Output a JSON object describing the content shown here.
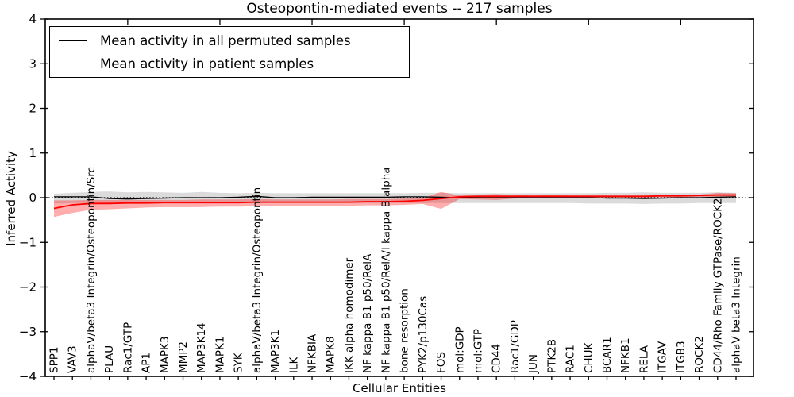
{
  "figure": {
    "title": "Osteopontin-mediated events -- 217 samples",
    "xlabel": "Cellular Entities",
    "ylabel": "Inferred Activity"
  },
  "legend": {
    "entries": [
      {
        "label": "Mean activity in all permuted samples",
        "color": "#000000"
      },
      {
        "label": "Mean activity in patient samples",
        "color": "#ff0000"
      }
    ]
  },
  "chart_data": {
    "type": "line",
    "title": "Osteopontin-mediated events -- 217 samples",
    "xlabel": "Cellular Entities",
    "ylabel": "Inferred Activity",
    "ylim": [
      -4,
      4
    ],
    "yticks": [
      -4,
      -3,
      -2,
      -1,
      0,
      1,
      2,
      3,
      4
    ],
    "ytick_labels": [
      "−4",
      "−3",
      "−2",
      "−1",
      "0",
      "1",
      "2",
      "3",
      "4"
    ],
    "grid": false,
    "zero_reference_line": true,
    "legend_position": "upper left",
    "categories": [
      "SPP1",
      "VAV3",
      "alphaV/beta3 Integrin/Osteopontin/Src",
      "PLAU",
      "Rac1/GTP",
      "AP1",
      "MAPK3",
      "MMP2",
      "MAP3K14",
      "MAPK1",
      "SYK",
      "alphaV/beta3 Integrin/Osteopontin",
      "MAP3K1",
      "ILK",
      "NFKBIA",
      "MAPK8",
      "IKK alpha homodimer",
      "NF kappa B1 p50/RelA",
      "NF kappa B1 p50/RelA/I kappa B alpha",
      "bone resorption",
      "PYK2/p130Cas",
      "FOS",
      "mol:GDP",
      "mol:GTP",
      "CD44",
      "Rac1/GDP",
      "JUN",
      "PTK2B",
      "RAC1",
      "CHUK",
      "BCAR1",
      "NFKB1",
      "RELA",
      "ITGAV",
      "ITGB3",
      "ROCK2",
      "CD44/Rho Family GTPase/ROCK2",
      "alphaV beta3 Integrin"
    ],
    "series": [
      {
        "name": "Mean activity in all permuted samples",
        "color": "#000000",
        "band_color": "rgba(0,0,0,0.14)",
        "values": [
          0.02,
          0.02,
          0.02,
          -0.02,
          -0.03,
          -0.02,
          -0.01,
          0.0,
          0.0,
          0.0,
          0.01,
          0.03,
          0.0,
          0.0,
          0.01,
          0.01,
          0.01,
          0.01,
          0.01,
          0.02,
          0.02,
          0.01,
          0.0,
          0.0,
          0.0,
          0.0,
          0.0,
          0.0,
          0.0,
          0.0,
          -0.01,
          -0.01,
          -0.02,
          -0.01,
          0.0,
          0.0,
          0.01,
          0.02
        ],
        "band_high": [
          0.09,
          0.11,
          0.13,
          0.14,
          0.12,
          0.13,
          0.12,
          0.11,
          0.13,
          0.11,
          0.1,
          0.11,
          0.1,
          0.1,
          0.1,
          0.1,
          0.1,
          0.1,
          0.1,
          0.1,
          0.11,
          0.11,
          0.1,
          0.1,
          0.1,
          0.1,
          0.1,
          0.1,
          0.1,
          0.1,
          0.11,
          0.11,
          0.12,
          0.11,
          0.11,
          0.11,
          0.12,
          0.11
        ],
        "band_low": [
          -0.13,
          -0.12,
          -0.12,
          -0.12,
          -0.12,
          -0.12,
          -0.12,
          -0.12,
          -0.12,
          -0.12,
          -0.12,
          -0.12,
          -0.12,
          -0.12,
          -0.12,
          -0.12,
          -0.12,
          -0.12,
          -0.12,
          -0.12,
          -0.12,
          -0.12,
          -0.12,
          -0.12,
          -0.12,
          -0.12,
          -0.12,
          -0.12,
          -0.12,
          -0.13,
          -0.13,
          -0.13,
          -0.14,
          -0.13,
          -0.13,
          -0.12,
          -0.12,
          -0.12
        ]
      },
      {
        "name": "Mean activity in patient samples",
        "color": "#ff0000",
        "band_color": "rgba(255,0,0,0.32)",
        "values": [
          -0.24,
          -0.16,
          -0.13,
          -0.13,
          -0.12,
          -0.12,
          -0.11,
          -0.11,
          -0.11,
          -0.11,
          -0.11,
          -0.1,
          -0.1,
          -0.1,
          -0.1,
          -0.1,
          -0.1,
          -0.09,
          -0.09,
          -0.08,
          -0.06,
          -0.02,
          0.02,
          0.03,
          0.03,
          0.03,
          0.03,
          0.03,
          0.03,
          0.03,
          0.03,
          0.03,
          0.03,
          0.04,
          0.04,
          0.05,
          0.06,
          0.06
        ],
        "band_high": [
          -0.06,
          -0.06,
          -0.05,
          -0.05,
          -0.05,
          -0.05,
          -0.05,
          -0.05,
          -0.04,
          -0.04,
          -0.04,
          -0.03,
          -0.04,
          -0.04,
          -0.04,
          -0.04,
          -0.03,
          -0.03,
          -0.03,
          -0.02,
          -0.01,
          0.13,
          0.05,
          0.07,
          0.08,
          0.06,
          0.05,
          0.06,
          0.05,
          0.05,
          0.05,
          0.05,
          0.05,
          0.06,
          0.06,
          0.07,
          0.11,
          0.1
        ],
        "band_low": [
          -0.43,
          -0.34,
          -0.27,
          -0.26,
          -0.24,
          -0.22,
          -0.21,
          -0.21,
          -0.21,
          -0.2,
          -0.2,
          -0.19,
          -0.19,
          -0.19,
          -0.18,
          -0.18,
          -0.18,
          -0.17,
          -0.17,
          -0.16,
          -0.14,
          -0.25,
          -0.03,
          -0.04,
          -0.05,
          -0.02,
          -0.01,
          -0.01,
          0.0,
          0.0,
          0.0,
          0.0,
          0.0,
          0.01,
          0.01,
          0.02,
          0.01,
          0.02
        ]
      }
    ]
  }
}
